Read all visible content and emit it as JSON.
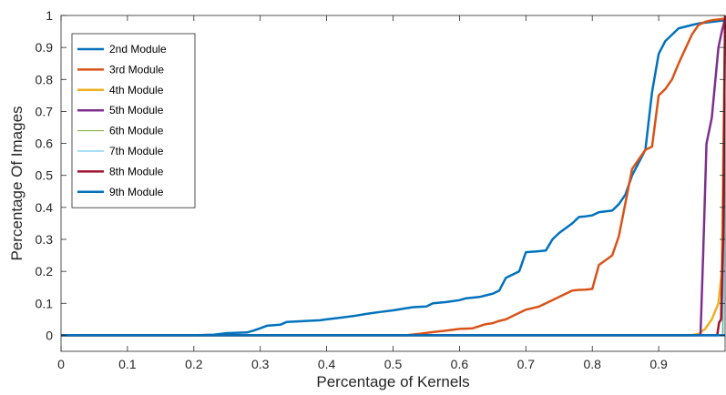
{
  "chart_data": {
    "type": "line",
    "title": "",
    "xlabel": "Percentage of Kernels",
    "ylabel": "Percentage Of Images",
    "xlim": [
      0,
      1
    ],
    "ylim": [
      -0.05,
      1
    ],
    "xticks": [
      0,
      0.1,
      0.2,
      0.3,
      0.4,
      0.5,
      0.6,
      0.7,
      0.8,
      0.9
    ],
    "xtick_labels": [
      "0",
      "0.1",
      "0.2",
      "0.3",
      "0.4",
      "0.5",
      "0.6",
      "0.7",
      "0.8",
      "0.9"
    ],
    "yticks": [
      0,
      0.1,
      0.2,
      0.3,
      0.4,
      0.5,
      0.6,
      0.7,
      0.8,
      0.9,
      1
    ],
    "ytick_labels": [
      "0",
      "0.1",
      "0.2",
      "0.3",
      "0.4",
      "0.5",
      "0.6",
      "0.7",
      "0.8",
      "0.9",
      "1"
    ],
    "grid": false,
    "legend_position": "top-left",
    "series": [
      {
        "name": "2nd Module",
        "color": "#0072BD",
        "width": 2.5,
        "points": [
          [
            0,
            0
          ],
          [
            0.2,
            0
          ],
          [
            0.23,
            0.002
          ],
          [
            0.25,
            0.007
          ],
          [
            0.28,
            0.009
          ],
          [
            0.29,
            0.015
          ],
          [
            0.3,
            0.022
          ],
          [
            0.31,
            0.03
          ],
          [
            0.33,
            0.033
          ],
          [
            0.34,
            0.042
          ],
          [
            0.36,
            0.044
          ],
          [
            0.39,
            0.047
          ],
          [
            0.4,
            0.05
          ],
          [
            0.42,
            0.055
          ],
          [
            0.44,
            0.06
          ],
          [
            0.46,
            0.067
          ],
          [
            0.48,
            0.073
          ],
          [
            0.5,
            0.078
          ],
          [
            0.52,
            0.085
          ],
          [
            0.53,
            0.088
          ],
          [
            0.55,
            0.09
          ],
          [
            0.56,
            0.1
          ],
          [
            0.58,
            0.104
          ],
          [
            0.6,
            0.11
          ],
          [
            0.61,
            0.116
          ],
          [
            0.63,
            0.12
          ],
          [
            0.64,
            0.125
          ],
          [
            0.65,
            0.13
          ],
          [
            0.66,
            0.14
          ],
          [
            0.67,
            0.18
          ],
          [
            0.68,
            0.19
          ],
          [
            0.69,
            0.2
          ],
          [
            0.7,
            0.26
          ],
          [
            0.72,
            0.263
          ],
          [
            0.73,
            0.265
          ],
          [
            0.74,
            0.3
          ],
          [
            0.75,
            0.32
          ],
          [
            0.76,
            0.335
          ],
          [
            0.77,
            0.35
          ],
          [
            0.78,
            0.37
          ],
          [
            0.79,
            0.372
          ],
          [
            0.8,
            0.375
          ],
          [
            0.81,
            0.385
          ],
          [
            0.83,
            0.39
          ],
          [
            0.84,
            0.41
          ],
          [
            0.85,
            0.44
          ],
          [
            0.86,
            0.5
          ],
          [
            0.87,
            0.54
          ],
          [
            0.88,
            0.58
          ],
          [
            0.89,
            0.76
          ],
          [
            0.9,
            0.88
          ],
          [
            0.91,
            0.92
          ],
          [
            0.92,
            0.94
          ],
          [
            0.93,
            0.96
          ],
          [
            0.95,
            0.97
          ],
          [
            0.96,
            0.975
          ],
          [
            0.98,
            0.98
          ],
          [
            1,
            0.985
          ]
        ]
      },
      {
        "name": "3rd Module",
        "color": "#D95319",
        "width": 2.5,
        "points": [
          [
            0,
            0
          ],
          [
            0.52,
            0
          ],
          [
            0.54,
            0.005
          ],
          [
            0.56,
            0.01
          ],
          [
            0.58,
            0.015
          ],
          [
            0.6,
            0.02
          ],
          [
            0.62,
            0.022
          ],
          [
            0.64,
            0.035
          ],
          [
            0.65,
            0.038
          ],
          [
            0.66,
            0.045
          ],
          [
            0.67,
            0.05
          ],
          [
            0.68,
            0.06
          ],
          [
            0.7,
            0.08
          ],
          [
            0.72,
            0.09
          ],
          [
            0.74,
            0.11
          ],
          [
            0.76,
            0.13
          ],
          [
            0.77,
            0.14
          ],
          [
            0.78,
            0.142
          ],
          [
            0.79,
            0.143
          ],
          [
            0.8,
            0.145
          ],
          [
            0.81,
            0.22
          ],
          [
            0.83,
            0.25
          ],
          [
            0.84,
            0.31
          ],
          [
            0.86,
            0.52
          ],
          [
            0.87,
            0.55
          ],
          [
            0.88,
            0.58
          ],
          [
            0.89,
            0.59
          ],
          [
            0.9,
            0.75
          ],
          [
            0.91,
            0.77
          ],
          [
            0.92,
            0.8
          ],
          [
            0.93,
            0.85
          ],
          [
            0.95,
            0.94
          ],
          [
            0.96,
            0.97
          ],
          [
            0.97,
            0.98
          ],
          [
            0.98,
            0.985
          ],
          [
            1,
            0.99
          ]
        ]
      },
      {
        "name": "4th Module",
        "color": "#EDB120",
        "width": 2.5,
        "points": [
          [
            0,
            0
          ],
          [
            0.95,
            0
          ],
          [
            0.96,
            0.005
          ],
          [
            0.97,
            0.02
          ],
          [
            0.98,
            0.05
          ],
          [
            0.99,
            0.1
          ],
          [
            0.995,
            0.2
          ],
          [
            1,
            1
          ]
        ]
      },
      {
        "name": "5th Module",
        "color": "#7E2F8E",
        "width": 2.5,
        "points": [
          [
            0,
            0
          ],
          [
            0.963,
            0
          ],
          [
            0.967,
            0.25
          ],
          [
            0.972,
            0.6
          ],
          [
            0.98,
            0.68
          ],
          [
            0.99,
            0.9
          ],
          [
            0.995,
            0.95
          ],
          [
            1,
            0.99
          ]
        ]
      },
      {
        "name": "6th Module",
        "color": "#77AC30",
        "width": 1,
        "points": [
          [
            0,
            0
          ],
          [
            0.996,
            0
          ],
          [
            0.999,
            0.5
          ],
          [
            1,
            1
          ]
        ]
      },
      {
        "name": "7th Module",
        "color": "#4DBEEE",
        "width": 1,
        "points": [
          [
            0,
            0
          ],
          [
            0.997,
            0
          ],
          [
            0.9995,
            0.6
          ],
          [
            1,
            1
          ]
        ]
      },
      {
        "name": "8th Module",
        "color": "#A2142F",
        "width": 2.5,
        "points": [
          [
            0,
            0
          ],
          [
            0.988,
            0
          ],
          [
            0.991,
            0.04
          ],
          [
            0.994,
            0.05
          ],
          [
            0.997,
            0.3
          ],
          [
            1,
            1
          ]
        ]
      },
      {
        "name": "9th Module",
        "color": "#0072BD",
        "width": 2.5,
        "points": [
          [
            0,
            0
          ],
          [
            0.998,
            0
          ],
          [
            1,
            0
          ]
        ]
      }
    ]
  }
}
